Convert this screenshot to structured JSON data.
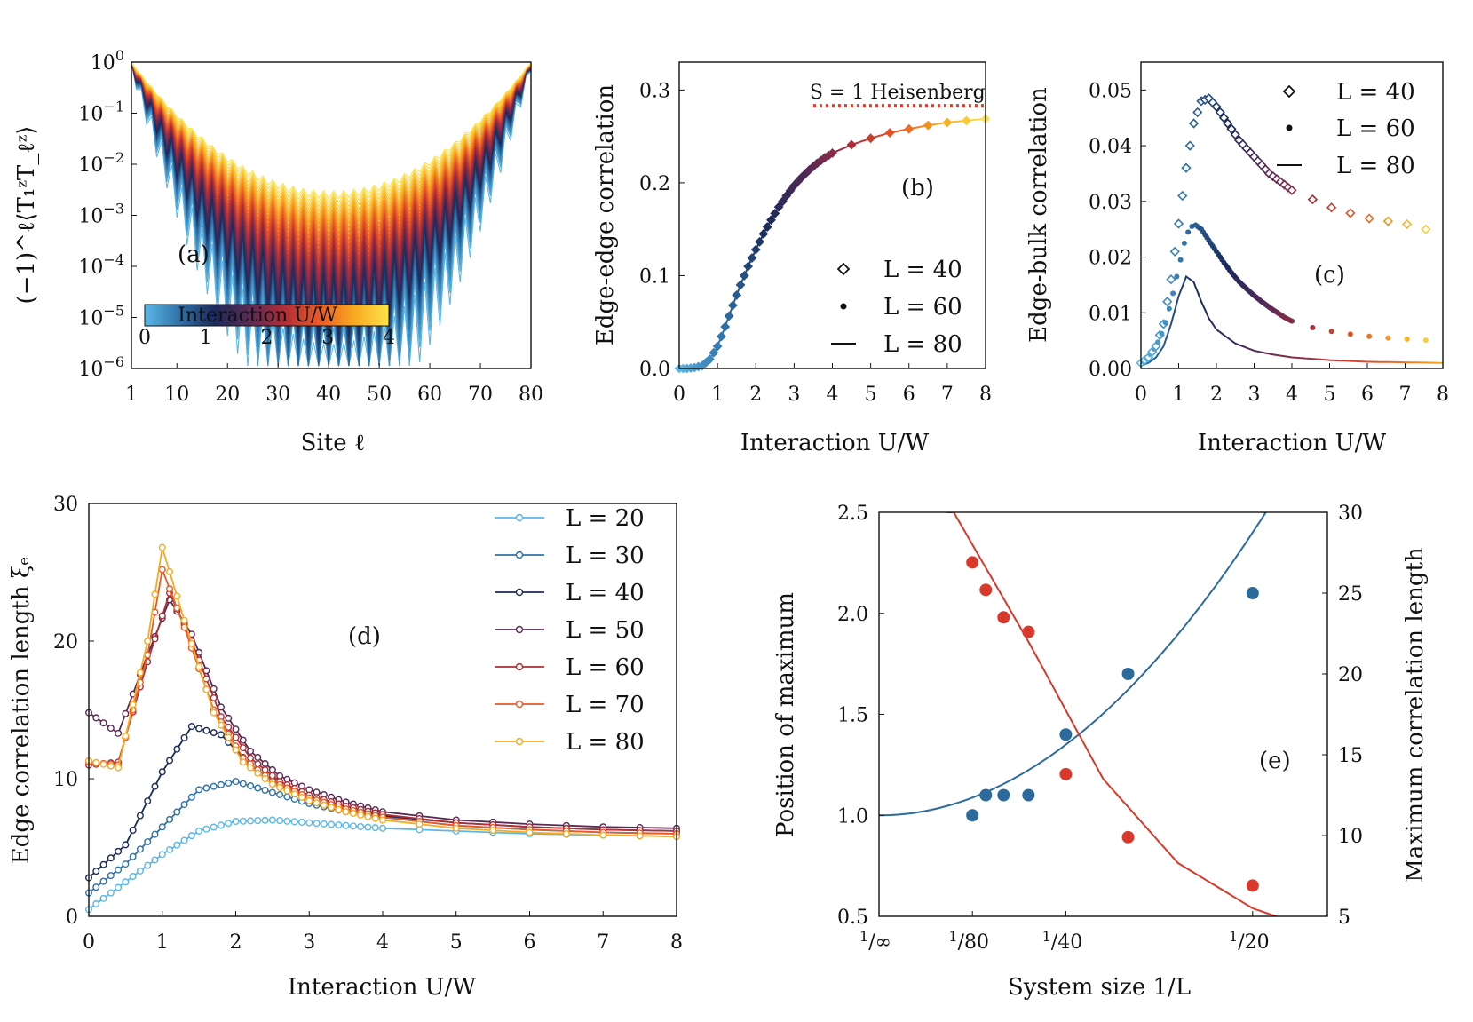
{
  "colors": {
    "blue": "#2b6a9b",
    "red": "#d9382a",
    "cmap": [
      "#5bb7e6",
      "#2f72a8",
      "#1b2a5a",
      "#5a2a55",
      "#b02d36",
      "#e95a25",
      "#f8a91f",
      "#fde34b"
    ]
  },
  "charts": [
    {
      "panel": "a",
      "type": "line",
      "title": "(a)",
      "xlabel": "Site ℓ",
      "ylabel": "(−1)^ℓ⟨T₁ᶻT_ℓᶻ⟩",
      "xticks": [
        "1",
        "10",
        "20",
        "30",
        "40",
        "50",
        "60",
        "70",
        "80"
      ],
      "yticks": [
        "10^0",
        "10^−1",
        "10^−2",
        "10^−3",
        "10^−4",
        "10^−5",
        "10^−6"
      ],
      "colorbar_label": "Interaction U/W",
      "colorbar_ticks": [
        "0",
        "1",
        "2",
        "3",
        "4"
      ],
      "chart_data": {
        "type": "line",
        "xlim": [
          1,
          80
        ],
        "ylim": [
          1e-06,
          1
        ],
        "yscale": "log",
        "series_description": "family of staggered correlation curves for U/W from 0 to 4, colored by U/W",
        "U_values": [
          0.0,
          0.5,
          1.0,
          1.5,
          2.0,
          2.5,
          3.0,
          3.5,
          4.0
        ],
        "minimum_at_site": 40,
        "min_envelope_low_U": 3e-06,
        "min_envelope_high_U": 0.003
      }
    },
    {
      "panel": "b",
      "type": "line",
      "title": "(b)",
      "xlabel": "Interaction U/W",
      "ylabel": "Edge-edge correlation",
      "xticks": [
        "0",
        "1",
        "2",
        "3",
        "4",
        "5",
        "6",
        "7",
        "8"
      ],
      "yticks": [
        "0.0",
        "0.1",
        "0.2",
        "0.3"
      ],
      "annotation": "S = 1 Heisenberg",
      "legend": [
        "L = 40",
        "L = 60",
        "L = 80"
      ],
      "chart_data": {
        "type": "line",
        "xlim": [
          0,
          8
        ],
        "ylim": [
          0,
          0.33
        ],
        "heisenberg_value": 0.283,
        "x": [
          0,
          0.2,
          0.4,
          0.6,
          0.8,
          1.0,
          1.2,
          1.4,
          1.6,
          1.8,
          2.0,
          2.2,
          2.4,
          2.6,
          2.8,
          3.0,
          3.2,
          3.4,
          3.6,
          3.8,
          4.0,
          4.5,
          5.0,
          5.5,
          6.0,
          6.5,
          7.0,
          7.5,
          8.0
        ],
        "y": [
          0,
          0,
          0.001,
          0.003,
          0.01,
          0.024,
          0.045,
          0.068,
          0.09,
          0.11,
          0.128,
          0.145,
          0.16,
          0.174,
          0.186,
          0.197,
          0.206,
          0.214,
          0.221,
          0.227,
          0.232,
          0.241,
          0.248,
          0.254,
          0.258,
          0.262,
          0.265,
          0.267,
          0.269
        ]
      }
    },
    {
      "panel": "c",
      "type": "line",
      "title": "(c)",
      "xlabel": "Interaction U/W",
      "ylabel": "Edge-bulk correlation",
      "xticks": [
        "0",
        "1",
        "2",
        "3",
        "4",
        "5",
        "6",
        "7",
        "8"
      ],
      "yticks": [
        "0.00",
        "0.01",
        "0.02",
        "0.03",
        "0.04",
        "0.05"
      ],
      "legend": [
        "L = 40",
        "L = 60",
        "L = 80"
      ],
      "chart_data": {
        "type": "line",
        "xlim": [
          0,
          8
        ],
        "ylim": [
          0,
          0.055
        ],
        "series": [
          {
            "name": "L = 40",
            "x": [
              0,
              0.2,
              0.4,
              0.6,
              0.8,
              1.0,
              1.2,
              1.4,
              1.6,
              1.8,
              2.0,
              2.2,
              2.4,
              2.6,
              2.8,
              3.0,
              3.2,
              3.4,
              3.6,
              3.8,
              4.0,
              4.5,
              5.0,
              5.5,
              6.0,
              6.5,
              7.0,
              7.5,
              8.0
            ],
            "y": [
              0.001,
              0.002,
              0.004,
              0.008,
              0.016,
              0.026,
              0.036,
              0.044,
              0.048,
              0.0485,
              0.047,
              0.045,
              0.043,
              0.041,
              0.0395,
              0.038,
              0.0365,
              0.035,
              0.034,
              0.033,
              0.032,
              0.0305,
              0.029,
              0.028,
              0.027,
              0.0265,
              0.026,
              0.025,
              0.0248
            ]
          },
          {
            "name": "L = 60",
            "x": [
              0,
              0.2,
              0.4,
              0.6,
              0.8,
              1.0,
              1.2,
              1.4,
              1.6,
              1.8,
              2.0,
              2.2,
              2.4,
              2.6,
              2.8,
              3.0,
              3.2,
              3.4,
              3.6,
              3.8,
              4.0,
              4.5,
              5.0,
              5.5,
              6.0,
              6.5,
              7.0,
              7.5,
              8.0
            ],
            "y": [
              0.001,
              0.002,
              0.004,
              0.007,
              0.012,
              0.018,
              0.024,
              0.026,
              0.025,
              0.023,
              0.021,
              0.019,
              0.0172,
              0.0156,
              0.0143,
              0.0131,
              0.012,
              0.011,
              0.0101,
              0.0092,
              0.0085,
              0.0074,
              0.0067,
              0.0062,
              0.0058,
              0.0055,
              0.0053,
              0.0051,
              0.005
            ]
          },
          {
            "name": "L = 80",
            "x": [
              0,
              0.2,
              0.4,
              0.6,
              0.8,
              1.0,
              1.2,
              1.4,
              1.6,
              1.8,
              2.0,
              2.5,
              3.0,
              3.5,
              4.0,
              5.0,
              6.0,
              7.0,
              8.0
            ],
            "y": [
              0.0005,
              0.001,
              0.002,
              0.004,
              0.008,
              0.013,
              0.0165,
              0.0155,
              0.012,
              0.009,
              0.007,
              0.0045,
              0.0032,
              0.0025,
              0.002,
              0.0015,
              0.0012,
              0.0011,
              0.001
            ]
          }
        ]
      }
    },
    {
      "panel": "d",
      "type": "line",
      "title": "(d)",
      "xlabel": "Interaction U/W",
      "ylabel": "Edge correlation length ξₑ",
      "xticks": [
        "0",
        "1",
        "2",
        "3",
        "4",
        "5",
        "6",
        "7",
        "8"
      ],
      "yticks": [
        "0",
        "10",
        "20",
        "30"
      ],
      "legend": [
        "L = 20",
        "L = 30",
        "L = 40",
        "L = 50",
        "L = 60",
        "L = 70",
        "L = 80"
      ],
      "chart_data": {
        "type": "line",
        "xlim": [
          0,
          8
        ],
        "ylim": [
          0,
          30
        ],
        "series": [
          {
            "name": "L = 20",
            "color": "#5bb7e6",
            "x": [
              0,
              0.5,
              1.0,
              1.5,
              2.0,
              2.5,
              3.0,
              3.5,
              4.0,
              5.0,
              6.0,
              7.0,
              8.0
            ],
            "y": [
              0.5,
              2.5,
              4.5,
              6.2,
              6.9,
              7.0,
              6.8,
              6.6,
              6.4,
              6.2,
              6.0,
              5.9,
              5.8
            ]
          },
          {
            "name": "L = 30",
            "color": "#2f72a8",
            "x": [
              0,
              0.5,
              1.0,
              1.5,
              2.0,
              2.5,
              3.0,
              3.5,
              4.0,
              5.0,
              6.0,
              7.0,
              8.0
            ],
            "y": [
              1.7,
              3.8,
              6.5,
              9.2,
              9.8,
              9.0,
              8.2,
              7.6,
              7.2,
              6.6,
              6.3,
              6.1,
              6.0
            ]
          },
          {
            "name": "L = 40",
            "color": "#1b2a5a",
            "x": [
              0,
              0.5,
              1.0,
              1.4,
              1.8,
              2.2,
              2.6,
              3.0,
              3.5,
              4.0,
              5.0,
              6.0,
              7.0,
              8.0
            ],
            "y": [
              2.8,
              5.2,
              10.5,
              13.8,
              13.2,
              11.0,
              9.5,
              8.6,
              7.8,
              7.3,
              6.8,
              6.5,
              6.3,
              6.2
            ]
          },
          {
            "name": "L = 50",
            "color": "#5a2a55",
            "x": [
              0,
              0.4,
              0.8,
              1.1,
              1.4,
              1.8,
              2.2,
              2.6,
              3.0,
              3.5,
              4.0,
              5.0,
              6.0,
              7.0,
              8.0
            ],
            "y": [
              14.8,
              13.3,
              19.0,
              23.0,
              20.5,
              15.2,
              12.0,
              10.2,
              9.2,
              8.3,
              7.6,
              7.0,
              6.7,
              6.5,
              6.4
            ]
          },
          {
            "name": "L = 60",
            "color": "#b02d36",
            "x": [
              0,
              0.4,
              0.8,
              1.1,
              1.4,
              1.8,
              2.2,
              2.6,
              3.0,
              3.5,
              4.0,
              5.0,
              6.0,
              7.0,
              8.0
            ],
            "y": [
              11.0,
              11.2,
              18.5,
              23.5,
              20.0,
              14.5,
              11.5,
              9.8,
              8.8,
              8.0,
              7.4,
              6.8,
              6.5,
              6.3,
              6.2
            ]
          },
          {
            "name": "L = 70",
            "color": "#e95a25",
            "x": [
              0,
              0.4,
              0.8,
              1.0,
              1.3,
              1.7,
              2.1,
              2.5,
              3.0,
              3.5,
              4.0,
              5.0,
              6.0,
              7.0,
              8.0
            ],
            "y": [
              11.2,
              11.0,
              19.0,
              25.2,
              21.0,
              15.0,
              11.5,
              9.8,
              8.6,
              7.8,
              7.2,
              6.6,
              6.3,
              6.1,
              6.0
            ]
          },
          {
            "name": "L = 80",
            "color": "#f8a91f",
            "x": [
              0,
              0.4,
              0.8,
              1.0,
              1.3,
              1.7,
              2.1,
              2.5,
              3.0,
              3.5,
              4.0,
              5.0,
              6.0,
              7.0,
              8.0
            ],
            "y": [
              11.3,
              10.8,
              20.0,
              26.8,
              21.5,
              14.8,
              11.2,
              9.6,
              8.4,
              7.6,
              7.0,
              6.4,
              6.1,
              5.9,
              5.8
            ]
          }
        ]
      }
    },
    {
      "panel": "e",
      "type": "scatter",
      "title": "(e)",
      "xlabel": "System size 1/L",
      "ylabel_left": "Position of maximum",
      "ylabel_right": "Maximum correlation length",
      "xticks": [
        "1/∞",
        "1/80",
        "1/40",
        "1/20"
      ],
      "yticks_left": [
        "0.5",
        "1.0",
        "1.5",
        "2.0",
        "2.5"
      ],
      "yticks_right": [
        "5",
        "10",
        "15",
        "20",
        "25",
        "30"
      ],
      "chart_data": {
        "type": "scatter",
        "xlim": [
          0,
          0.06
        ],
        "ylim_left": [
          0.5,
          2.5
        ],
        "ylim_right": [
          5,
          30
        ],
        "series": [
          {
            "name": "Position of maximum",
            "axis": "left",
            "x": [
              0.0125,
              0.01429,
              0.01667,
              0.02,
              0.025,
              0.03333,
              0.05
            ],
            "y": [
              1.0,
              1.1,
              1.1,
              1.1,
              1.4,
              1.7,
              2.1
            ]
          },
          {
            "name": "Maximum correlation length",
            "axis": "right",
            "x": [
              0.0125,
              0.01429,
              0.01667,
              0.02,
              0.025,
              0.03333,
              0.05
            ],
            "y": [
              26.9,
              25.2,
              23.5,
              22.6,
              13.8,
              9.9,
              6.9
            ]
          }
        ],
        "fits": [
          {
            "axis": "left",
            "form": "1 + a x^2",
            "a": 560
          },
          {
            "axis": "right",
            "form": "quadratic decay",
            "points_x": [
              0.01,
              0.02,
              0.03,
              0.04,
              0.05,
              0.055
            ],
            "points_y": [
              30,
              22,
              13.5,
              8.3,
              5.5,
              4.7
            ]
          }
        ]
      }
    }
  ]
}
